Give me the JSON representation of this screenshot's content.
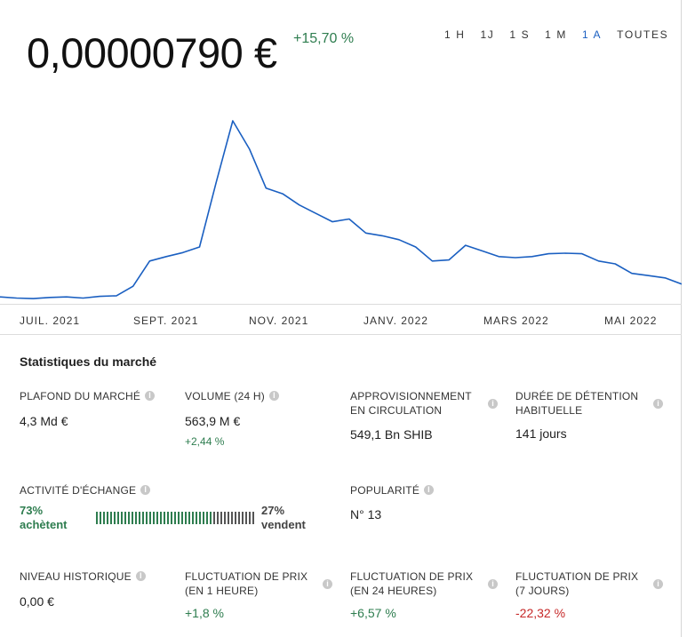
{
  "header": {
    "price": "0,00000790 €",
    "change": "+15,70 %",
    "ranges": [
      "1 H",
      "1J",
      "1 S",
      "1 M",
      "1 A",
      "TOUTES"
    ],
    "active_range": "1 A"
  },
  "chart": {
    "x_labels": [
      "JUIL. 2021",
      "SEPT. 2021",
      "NOV. 2021",
      "JANV. 2022",
      "MARS 2022",
      "MAI 2022"
    ],
    "line_color": "#1a5fc1"
  },
  "chart_data": {
    "type": "line",
    "x_ticks": [
      "JUIL. 2021",
      "SEPT. 2021",
      "NOV. 2021",
      "JANV. 2022",
      "MARS 2022",
      "MAI 2022"
    ],
    "series": [
      {
        "values": [
          5.6e-06,
          5.4e-06,
          5.3e-06,
          5.5e-06,
          5.6e-06,
          5.4e-06,
          5.7e-06,
          5.8e-06,
          7.5e-06,
          1.2e-05,
          1.28e-05,
          1.35e-05,
          1.45e-05,
          2.6e-05,
          3.7e-05,
          3.2e-05,
          2.5e-05,
          2.4e-05,
          2.2e-05,
          2.05e-05,
          1.9e-05,
          1.95e-05,
          1.7e-05,
          1.65e-05,
          1.58e-05,
          1.45e-05,
          1.2e-05,
          1.22e-05,
          1.48e-05,
          1.38e-05,
          1.28e-05,
          1.26e-05,
          1.28e-05,
          1.33e-05,
          1.34e-05,
          1.33e-05,
          1.2e-05,
          1.15e-05,
          9.8e-06,
          9.4e-06,
          9e-06,
          7.9e-06
        ]
      }
    ]
  },
  "stats": {
    "title": "Statistiques du marché",
    "market_cap": {
      "label": "PLAFOND DU MARCHÉ",
      "value": "4,3 Md €"
    },
    "volume": {
      "label": "VOLUME (24 H)",
      "value": "563,9 M €",
      "sub": "+2,44 %"
    },
    "supply": {
      "label1": "APPROVISIONNEMENT",
      "label2": "EN CIRCULATION",
      "value": "549,1 Bn SHIB"
    },
    "holding": {
      "label1": "DURÉE DE DÉTENTION",
      "label2": "HABITUELLE",
      "value": "141 jours"
    },
    "activity": {
      "label": "ACTIVITÉ D'ÉCHANGE",
      "buy_pct": "73%",
      "buy_text": "achètent",
      "sell_pct": "27%",
      "sell_text": "vendent",
      "buy_fraction": 0.73
    },
    "popularity": {
      "label": "POPULARITÉ",
      "value": "N° 13"
    },
    "ath": {
      "label": "NIVEAU HISTORIQUE",
      "value": "0,00 €"
    },
    "fluct_1h": {
      "label1": "FLUCTUATION DE PRIX",
      "label2": "(EN 1 HEURE)",
      "value": "+1,8 %"
    },
    "fluct_24h": {
      "label1": "FLUCTUATION DE PRIX",
      "label2": "(EN 24 HEURES)",
      "value": "+6,57 %"
    },
    "fluct_7d": {
      "label1": "FLUCTUATION DE PRIX",
      "label2": "(7 JOURS)",
      "value": "-22,32 %"
    }
  },
  "colors": {
    "positive": "#2e7d4f",
    "negative": "#c62828",
    "accent": "#1a5fc1"
  }
}
